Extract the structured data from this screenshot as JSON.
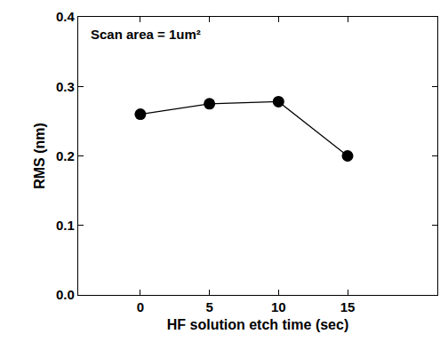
{
  "chart_data": {
    "type": "line",
    "annotations": [
      "Scan area = 1um²"
    ],
    "x_label": "HF solution etch time (sec)",
    "y_label": "RMS (nm)",
    "x": [
      0,
      5,
      10,
      15
    ],
    "values": [
      0.26,
      0.275,
      0.278,
      0.2
    ],
    "color": "#000000",
    "marker": "circle",
    "line_style": "solid",
    "xlim": [
      -4.5,
      21.5
    ],
    "xticks": [
      0,
      5,
      10,
      15
    ],
    "ylim": [
      0,
      0.4
    ],
    "yticks": [
      {
        "value": 0,
        "label": "0.0"
      },
      0.1,
      0.2,
      0.3,
      0.4
    ],
    "grid": false
  }
}
